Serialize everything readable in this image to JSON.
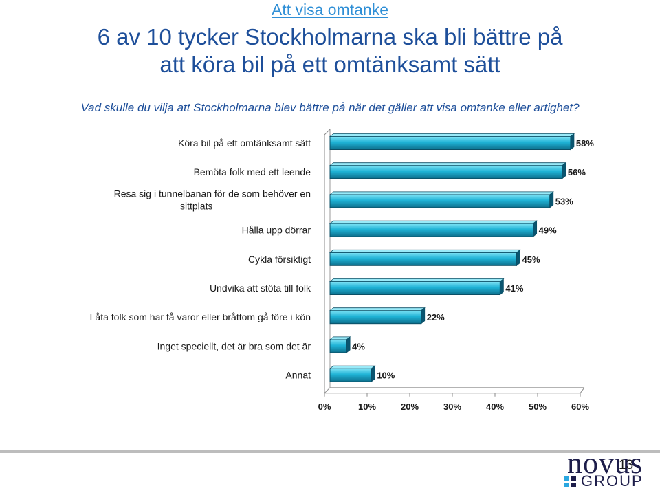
{
  "header": {
    "section": "Att visa omtanke",
    "title_line1": "6 av 10 tycker Stockholmarna ska bli bättre på",
    "title_line2": "att köra bil på ett omtänksamt sätt",
    "question": "Vad skulle du vilja att Stockholmarna blev bättre på när det gäller att visa omtanke eller artighet?"
  },
  "chart_data": {
    "type": "bar",
    "orientation": "horizontal",
    "categories": [
      [
        "Köra bil på ett omtänksamt sätt"
      ],
      [
        "Bemöta folk med ett leende"
      ],
      [
        "Resa sig i tunnelbanan för de som behöver en",
        "sittplats"
      ],
      [
        "Hålla upp dörrar"
      ],
      [
        "Cykla försiktigt"
      ],
      [
        "Undvika att stöta till folk"
      ],
      [
        "Låta folk som har få varor eller bråttom gå före i kön"
      ],
      [
        "Inget speciellt, det är bra som det är"
      ],
      [
        "Annat"
      ]
    ],
    "values": [
      58,
      56,
      53,
      49,
      45,
      41,
      22,
      4,
      10
    ],
    "value_labels": [
      "58%",
      "56%",
      "53%",
      "49%",
      "45%",
      "41%",
      "22%",
      "4%",
      "10%"
    ],
    "xlim": [
      0,
      60
    ],
    "ticks": [
      "0%",
      "10%",
      "20%",
      "30%",
      "40%",
      "50%",
      "60%"
    ],
    "bar_color": "#1fb3d6",
    "grid": false
  },
  "footer": {
    "page_number": "13",
    "logo_text": "novus",
    "logo_subtext": "GROUP",
    "logo_color": "#1d1d4a",
    "accent_colors": [
      "#2aa7e0",
      "#1d1d4a",
      "#2aa7e0",
      "#1d1d4a"
    ]
  }
}
